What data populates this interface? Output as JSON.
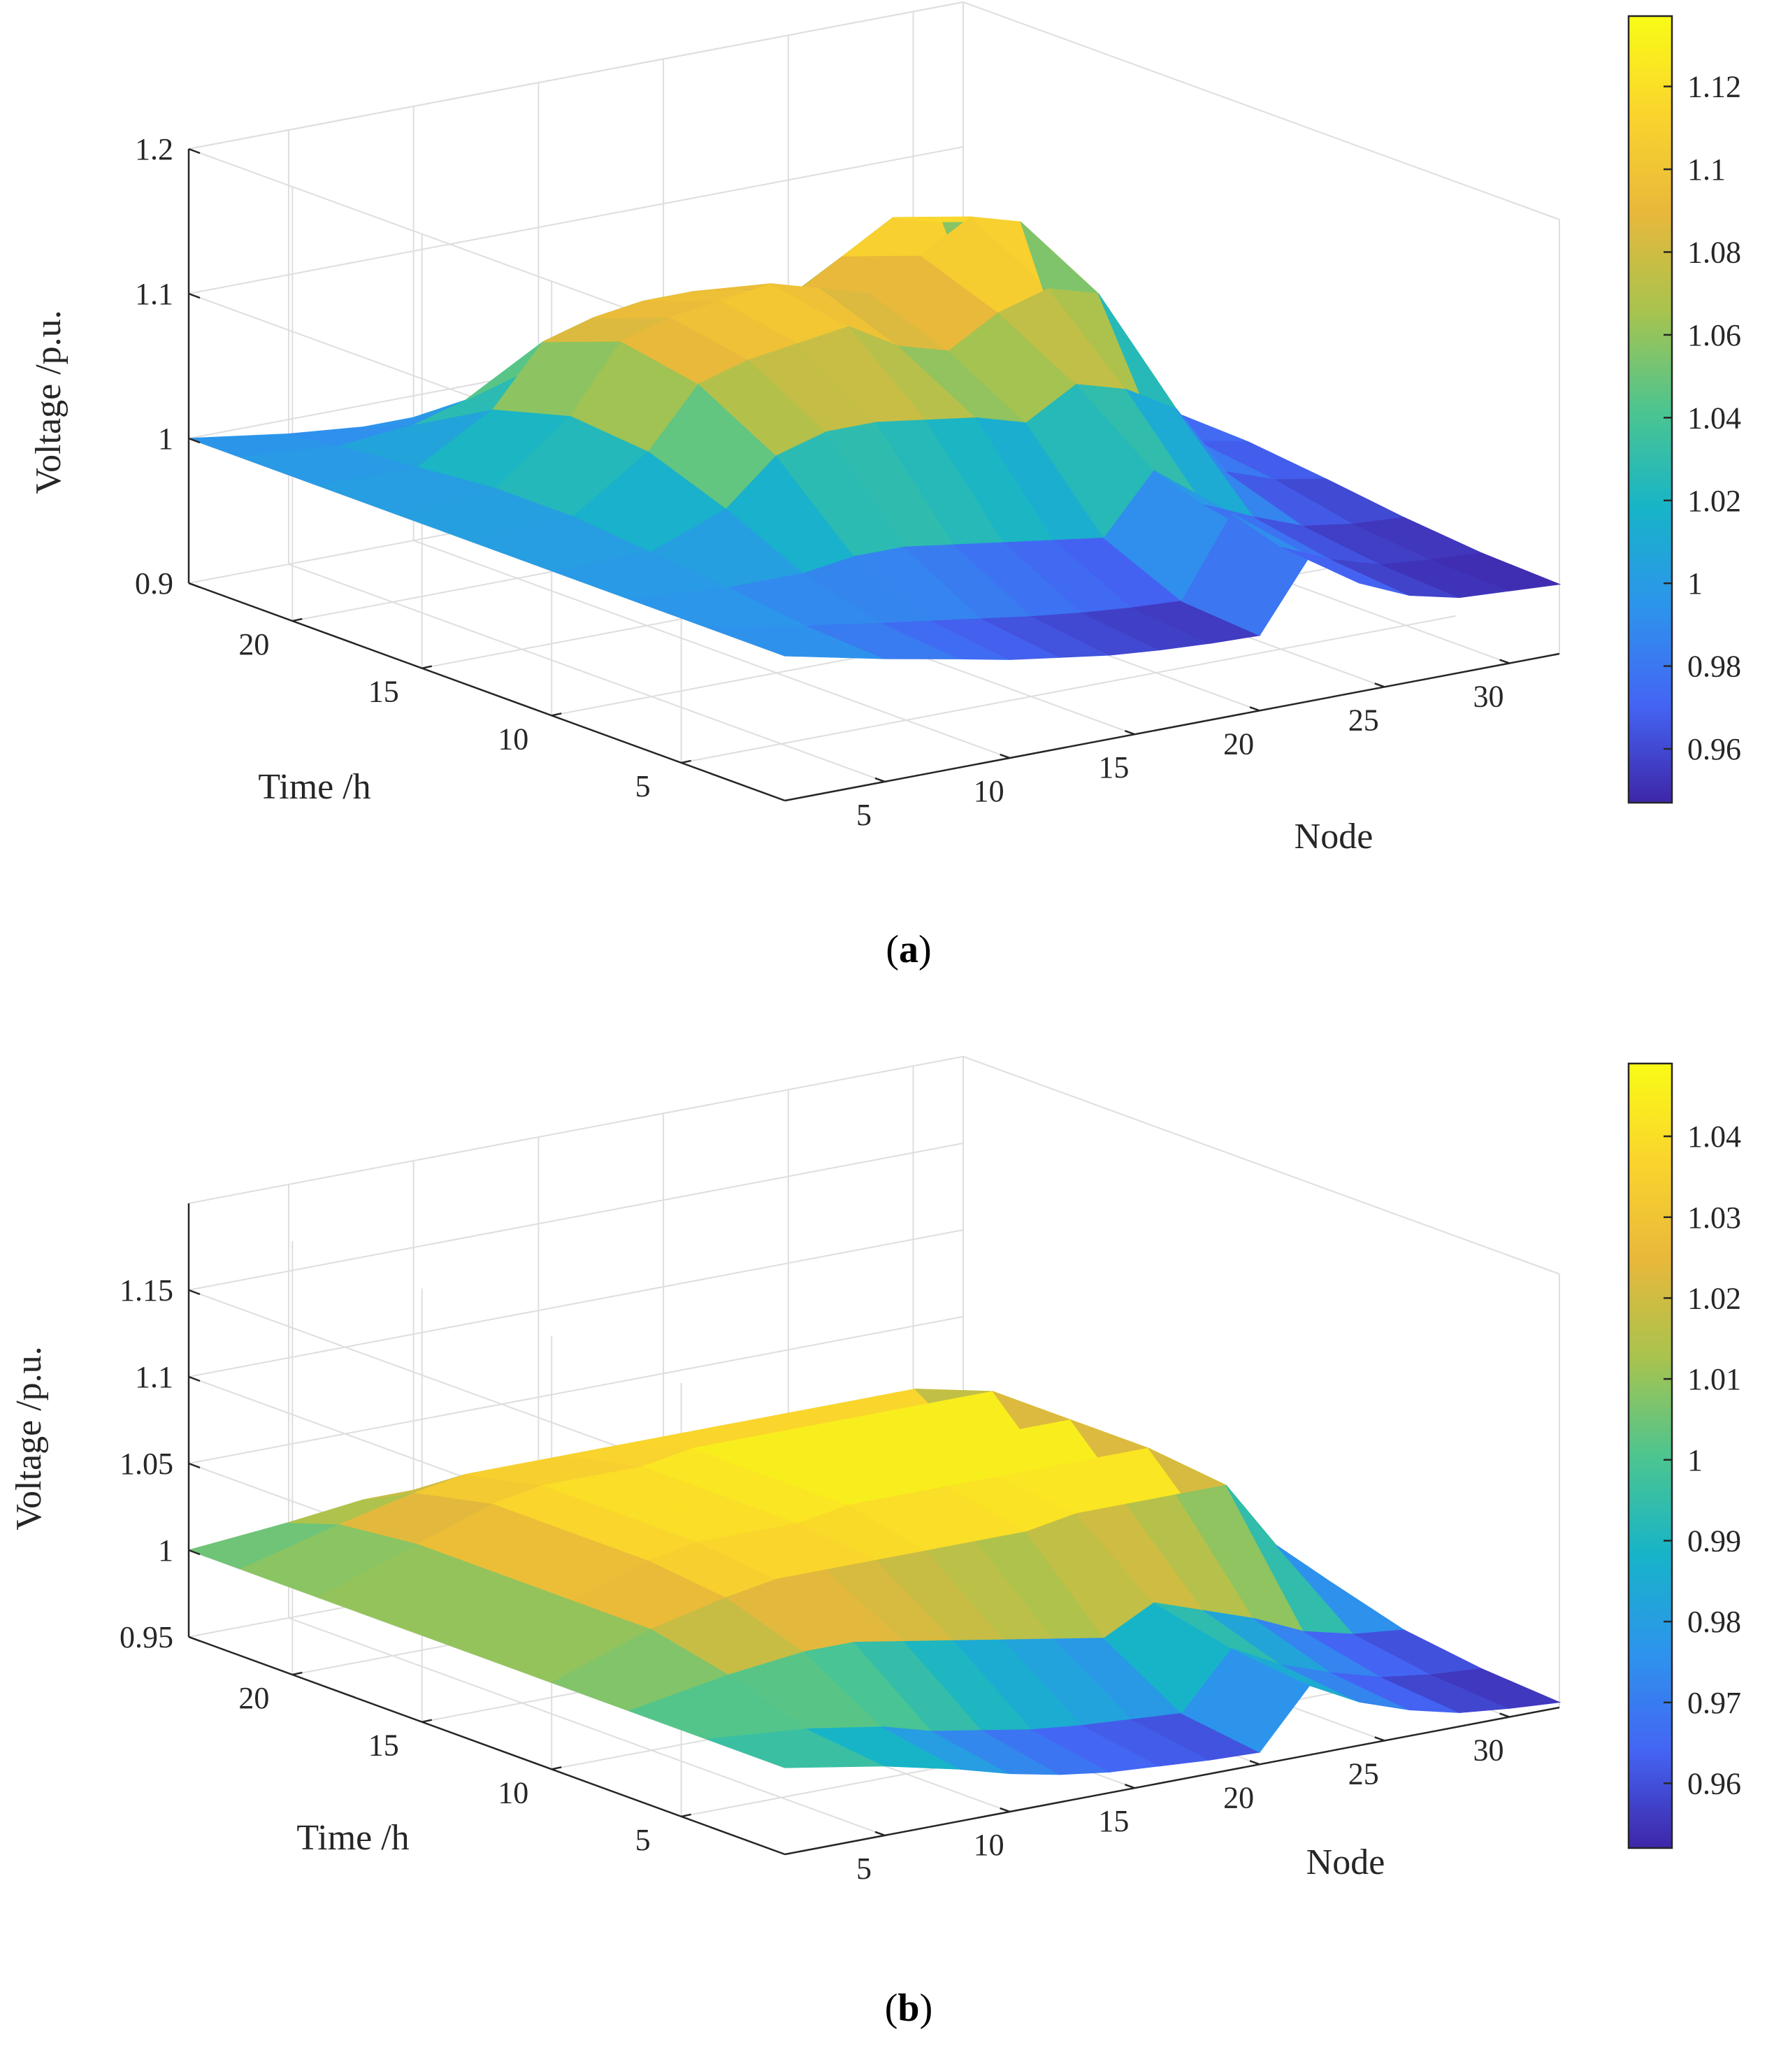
{
  "chart_data": [
    {
      "panel": "a",
      "caption": "(a)",
      "type": "surface3d",
      "xlabel": "Node",
      "ylabel": "Time /h",
      "zlabel": "Voltage /p.u.",
      "x_ticks": [
        "5",
        "10",
        "15",
        "20",
        "25",
        "30"
      ],
      "y_ticks": [
        "5",
        "10",
        "15",
        "20"
      ],
      "z_ticks": [
        "0.9",
        "1",
        "1.1",
        "1.2"
      ],
      "zlim": [
        0.9,
        1.2
      ],
      "colorbar_ticks": [
        "0.96",
        "0.98",
        "1",
        "1.02",
        "1.04",
        "1.06",
        "1.08",
        "1.1",
        "1.12"
      ],
      "colorbar_range": [
        0.947,
        1.137
      ],
      "colormap": [
        "#3e26a8",
        "#4465f4",
        "#2d94ec",
        "#17b4c8",
        "#4dc58f",
        "#a8c34e",
        "#e8b83b",
        "#fad42d",
        "#f9fb15"
      ],
      "surface": {
        "nodes": [
          1,
          5,
          8,
          10,
          12,
          14,
          16,
          18,
          20,
          22,
          24,
          26,
          28,
          30,
          32
        ],
        "times": [
          1,
          4,
          7,
          10,
          13,
          16,
          19,
          22,
          24
        ],
        "voltage": [
          [
            1.0,
            0.985,
            0.975,
            0.968,
            0.963,
            0.958,
            0.955,
            0.953,
            0.952,
            1.0,
            0.975,
            0.96,
            0.952,
            0.95,
            0.948
          ],
          [
            1.0,
            0.988,
            0.98,
            0.975,
            0.97,
            0.965,
            0.961,
            0.958,
            0.956,
            1.01,
            0.98,
            0.965,
            0.955,
            0.952,
            0.95
          ],
          [
            1.0,
            0.995,
            0.995,
            1.0,
            1.0,
            0.995,
            0.99,
            0.985,
            0.98,
            1.02,
            0.99,
            0.975,
            0.962,
            0.957,
            0.955
          ],
          [
            1.0,
            1.0,
            1.02,
            1.05,
            1.06,
            1.06,
            1.055,
            1.05,
            1.04,
            1.06,
            1.05,
            1.03,
            0.98,
            0.968,
            0.962
          ],
          [
            1.0,
            1.005,
            1.04,
            1.08,
            1.09,
            1.095,
            1.1,
            1.08,
            1.07,
            1.09,
            1.1,
            1.09,
            1.0,
            0.975,
            0.968
          ],
          [
            1.0,
            1.005,
            1.045,
            1.09,
            1.1,
            1.105,
            1.11,
            1.1,
            1.09,
            1.11,
            1.13,
            1.12,
            1.01,
            0.98,
            0.97
          ],
          [
            1.0,
            1.0,
            1.03,
            1.07,
            1.08,
            1.085,
            1.085,
            1.08,
            1.07,
            1.09,
            1.11,
            1.1,
            1.0,
            0.975,
            0.968
          ],
          [
            1.0,
            0.995,
            1.0,
            1.01,
            1.02,
            1.02,
            1.02,
            1.015,
            1.01,
            1.03,
            1.04,
            1.03,
            0.985,
            0.968,
            0.962
          ],
          [
            1.0,
            0.99,
            0.985,
            0.985,
            0.985,
            0.985,
            0.98,
            0.978,
            0.975,
            1.0,
            0.99,
            0.98,
            0.965,
            0.958,
            0.955
          ]
        ]
      }
    },
    {
      "panel": "b",
      "caption": "(b)",
      "type": "surface3d",
      "xlabel": "Node",
      "ylabel": "Time /h",
      "zlabel": "Voltage /p.u.",
      "x_ticks": [
        "5",
        "10",
        "15",
        "20",
        "25",
        "30"
      ],
      "y_ticks": [
        "5",
        "10",
        "15",
        "20"
      ],
      "z_ticks": [
        "0.95",
        "1",
        "1.05",
        "1.1",
        "1.15"
      ],
      "zlim": [
        0.95,
        1.2
      ],
      "colorbar_ticks": [
        "0.96",
        "0.97",
        "0.98",
        "0.99",
        "1",
        "1.01",
        "1.02",
        "1.03",
        "1.04"
      ],
      "colorbar_range": [
        0.952,
        1.049
      ],
      "colormap": [
        "#3e26a8",
        "#4465f4",
        "#2d94ec",
        "#17b4c8",
        "#4dc58f",
        "#a8c34e",
        "#e8b83b",
        "#fad42d",
        "#f9fb15"
      ],
      "surface": {
        "nodes": [
          1,
          5,
          8,
          10,
          12,
          14,
          16,
          18,
          20,
          22,
          24,
          26,
          28,
          30,
          32
        ],
        "times": [
          1,
          4,
          7,
          10,
          13,
          16,
          19,
          22,
          24
        ],
        "voltage": [
          [
            1.0,
            0.99,
            0.98,
            0.972,
            0.966,
            0.962,
            0.96,
            0.958,
            0.957,
            0.99,
            0.975,
            0.965,
            0.958,
            0.955,
            0.953
          ],
          [
            1.0,
            0.995,
            0.988,
            0.98,
            0.975,
            0.97,
            0.967,
            0.965,
            0.963,
            0.995,
            0.98,
            0.97,
            0.962,
            0.958,
            0.956
          ],
          [
            1.0,
            1.01,
            1.015,
            1.015,
            1.01,
            1.005,
            1.0,
            0.995,
            0.99,
            1.005,
            0.995,
            0.985,
            0.972,
            0.965,
            0.962
          ],
          [
            1.0,
            1.02,
            1.03,
            1.035,
            1.035,
            1.035,
            1.035,
            1.035,
            1.035,
            1.04,
            1.04,
            1.04,
            1.04,
            1.0,
            0.975
          ],
          [
            1.0,
            1.02,
            1.035,
            1.04,
            1.04,
            1.04,
            1.045,
            1.045,
            1.045,
            1.045,
            1.045,
            1.045,
            1.045,
            1.0,
            0.975
          ],
          [
            1.0,
            1.02,
            1.035,
            1.04,
            1.04,
            1.04,
            1.045,
            1.045,
            1.045,
            1.045,
            1.045,
            1.045,
            1.045,
            1.0,
            0.975
          ],
          [
            1.0,
            1.02,
            1.035,
            1.04,
            1.04,
            1.04,
            1.045,
            1.045,
            1.045,
            1.045,
            1.045,
            1.045,
            1.045,
            1.0,
            0.975
          ],
          [
            1.0,
            1.015,
            1.025,
            1.03,
            1.03,
            1.03,
            1.03,
            1.03,
            1.03,
            1.03,
            1.03,
            1.03,
            1.03,
            0.995,
            0.972
          ],
          [
            1.0,
            1.005,
            1.01,
            1.01,
            1.01,
            1.008,
            1.005,
            1.003,
            1.0,
            1.005,
            1.0,
            0.995,
            0.99,
            0.98,
            0.965
          ]
        ]
      }
    }
  ]
}
